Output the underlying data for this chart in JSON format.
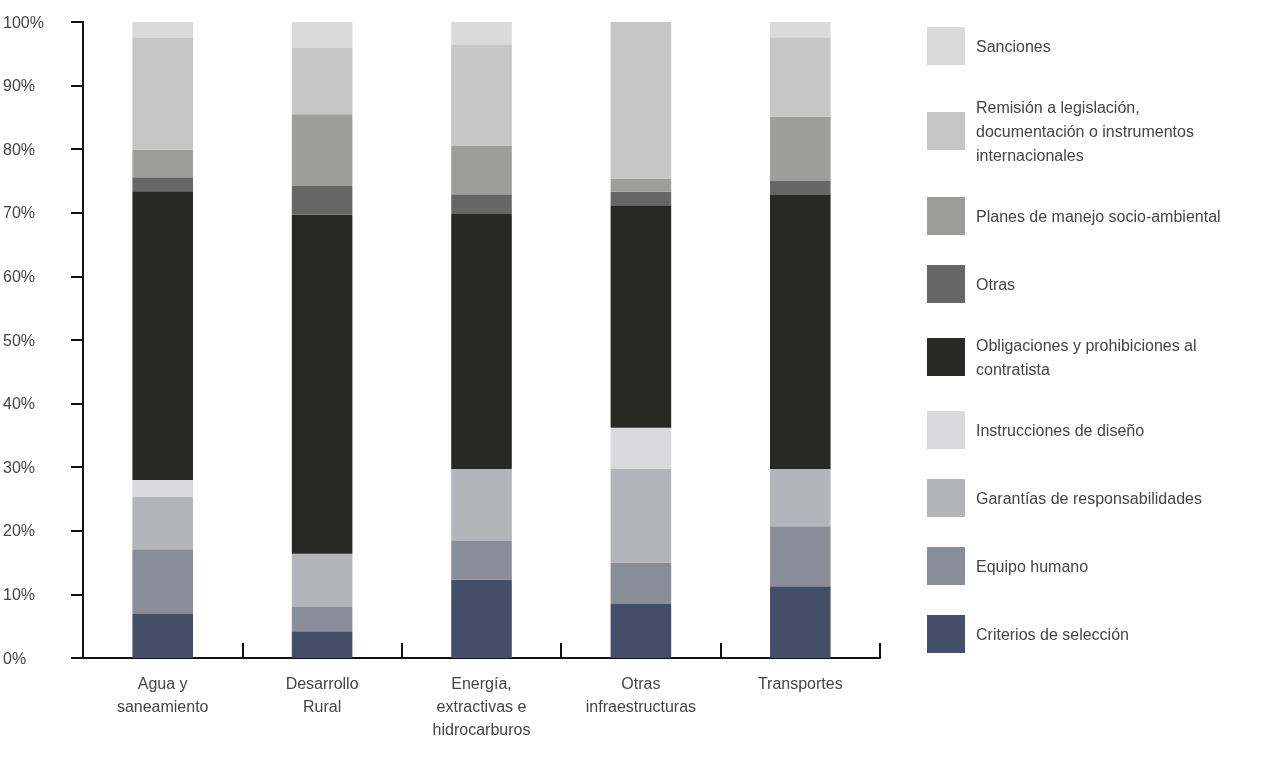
{
  "chart_data": {
    "type": "bar",
    "stacked": true,
    "categories": [
      "Agua y saneamiento",
      "Desarrollo Rural",
      "Energía, extractivas e hidrocarburos",
      "Otras infraestructuras",
      "Transportes"
    ],
    "series": [
      {
        "name": "Criterios de selección",
        "color": "#444e69",
        "values": [
          6.9,
          4.2,
          12.3,
          8.5,
          11.3
        ]
      },
      {
        "name": "Equipo humano",
        "color": "#898d97",
        "values": [
          10.2,
          3.8,
          6.1,
          6.5,
          9.4
        ]
      },
      {
        "name": "Garantías de responsabilidades",
        "color": "#b4b5ba",
        "values": [
          8.2,
          8.4,
          11.3,
          14.7,
          9.0
        ]
      },
      {
        "name": "Instrucciones de diseño",
        "color": "#dadadc",
        "values": [
          2.7,
          0,
          0,
          6.5,
          0
        ]
      },
      {
        "name": "Obligaciones y prohibiciones al contratista",
        "color": "#282826",
        "values": [
          45.4,
          53.3,
          40.1,
          35.0,
          43.1
        ]
      },
      {
        "name": "Otras",
        "color": "#666666",
        "values": [
          2.2,
          4.5,
          3.1,
          2.1,
          2.2
        ]
      },
      {
        "name": "Planes de manejo socio-ambiental",
        "color": "#9d9d9b",
        "values": [
          4.3,
          11.3,
          7.6,
          2.1,
          10.1
        ]
      },
      {
        "name": "Remisión a legislación, documentación o instrumentos internacionales",
        "color": "#c6c6c6",
        "values": [
          17.6,
          10.4,
          15.9,
          24.6,
          12.5
        ]
      },
      {
        "name": "Sanciones",
        "color": "#dadada",
        "values": [
          2.5,
          4.1,
          3.6,
          0,
          2.4
        ]
      }
    ],
    "ylim": [
      0,
      100
    ],
    "yticks": [
      {
        "value": 0,
        "label": "0%"
      },
      {
        "value": 10,
        "label": "10%"
      },
      {
        "value": 20,
        "label": "20%"
      },
      {
        "value": 30,
        "label": "30%"
      },
      {
        "value": 40,
        "label": "40%"
      },
      {
        "value": 50,
        "label": "50%"
      },
      {
        "value": 60,
        "label": "60%"
      },
      {
        "value": 70,
        "label": "70%"
      },
      {
        "value": 80,
        "label": "80%"
      },
      {
        "value": 90,
        "label": "90%"
      },
      {
        "value": 100,
        "label": "100%"
      }
    ],
    "grid": false,
    "legend": "right"
  }
}
